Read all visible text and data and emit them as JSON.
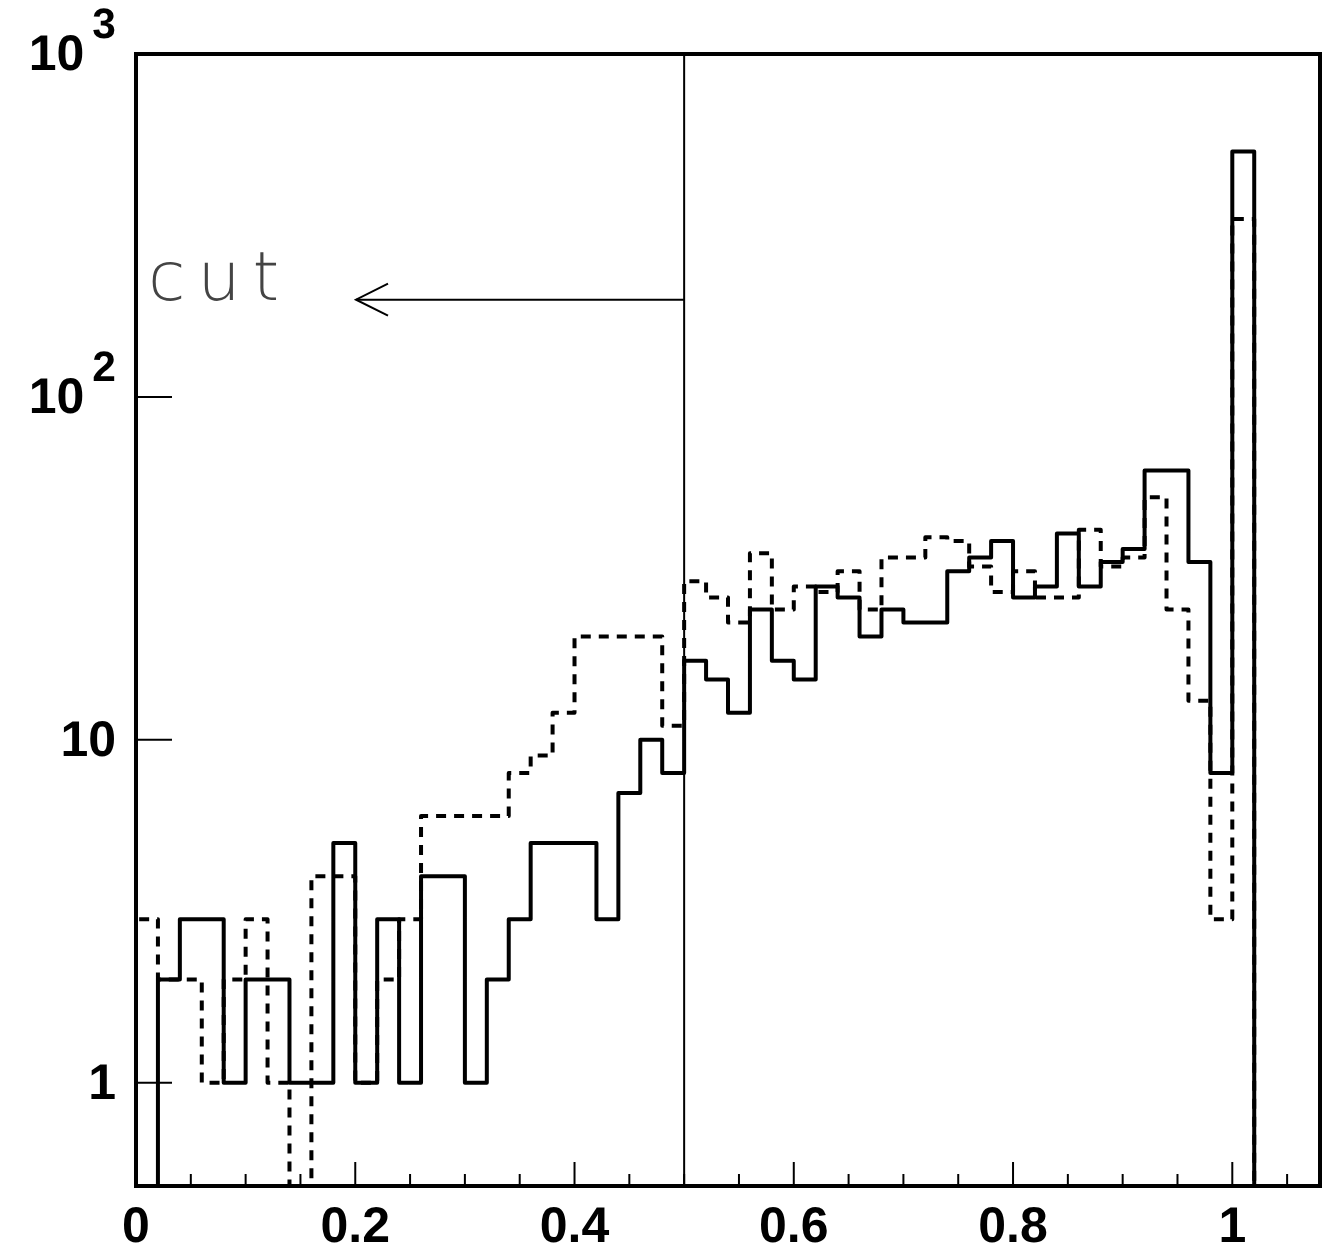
{
  "chart_data": {
    "type": "histogram",
    "bins": [
      0,
      0.02,
      0.04,
      0.06,
      0.08,
      0.1,
      0.12,
      0.14,
      0.16,
      0.18,
      0.2,
      0.22,
      0.24,
      0.26,
      0.28,
      0.3,
      0.32,
      0.34,
      0.36,
      0.38,
      0.4,
      0.42,
      0.44,
      0.46,
      0.48,
      0.5,
      0.52,
      0.54,
      0.56,
      0.58,
      0.6,
      0.62,
      0.64,
      0.66,
      0.68,
      0.7,
      0.72,
      0.74,
      0.76,
      0.78,
      0.8,
      0.82,
      0.84,
      0.86,
      0.88,
      0.9,
      0.92,
      0.94,
      0.96,
      0.98,
      1,
      1.02
    ],
    "series": [
      {
        "color": "#000000",
        "line_style": "solid",
        "values": [
          null,
          2,
          3,
          3,
          1,
          2,
          2,
          1,
          1,
          5,
          1,
          3,
          1,
          4,
          4,
          1,
          2,
          3,
          5,
          5,
          5,
          3,
          7,
          10,
          8,
          17,
          15,
          12,
          24,
          17,
          15,
          28,
          26,
          20,
          24,
          22,
          22,
          31,
          34,
          38,
          26,
          28,
          40,
          28,
          33,
          36,
          61,
          61,
          33,
          8,
          520
        ]
      },
      {
        "color": "#000000",
        "line_style": "dashed",
        "values": [
          3,
          2,
          2,
          1,
          2,
          3,
          1,
          null,
          4,
          4,
          1,
          2,
          3,
          6,
          6,
          6,
          6,
          8,
          9,
          12,
          20,
          20,
          20,
          20,
          11,
          29,
          26,
          22,
          35,
          24,
          28,
          27,
          31,
          24,
          34,
          34,
          39,
          38,
          32,
          27,
          31,
          26,
          26,
          41,
          32,
          34,
          51,
          24,
          13,
          3,
          330
        ]
      }
    ],
    "xlim": [
      0,
      1.08
    ],
    "xticks": [
      0,
      {
        "value": 0.05,
        "label": null
      },
      {
        "value": 0.1,
        "label": null
      },
      {
        "value": 0.15,
        "label": null
      },
      0.2,
      {
        "value": 0.25,
        "label": null
      },
      {
        "value": 0.3,
        "label": null
      },
      {
        "value": 0.35,
        "label": null
      },
      0.4,
      {
        "value": 0.45,
        "label": null
      },
      {
        "value": 0.5,
        "label": null
      },
      {
        "value": 0.55,
        "label": null
      },
      0.6,
      {
        "value": 0.65,
        "label": null
      },
      {
        "value": 0.7,
        "label": null
      },
      {
        "value": 0.75,
        "label": null
      },
      0.8,
      {
        "value": 0.85,
        "label": null
      },
      {
        "value": 0.9,
        "label": null
      },
      {
        "value": 0.95,
        "label": null
      },
      1,
      {
        "value": 1.05,
        "label": null
      }
    ],
    "ylim": [
      0.5,
      1000
    ],
    "log": true,
    "yticks": [
      1,
      10,
      {
        "value": 100,
        "label": "10$^{2}$"
      },
      {
        "value": 1000,
        "label": "10$^{3}$"
      }
    ],
    "grid": false,
    "ref_lines": [
      {
        "axis": "x",
        "value": 0.5,
        "label": "cut",
        "color": "#000000"
      }
    ]
  }
}
